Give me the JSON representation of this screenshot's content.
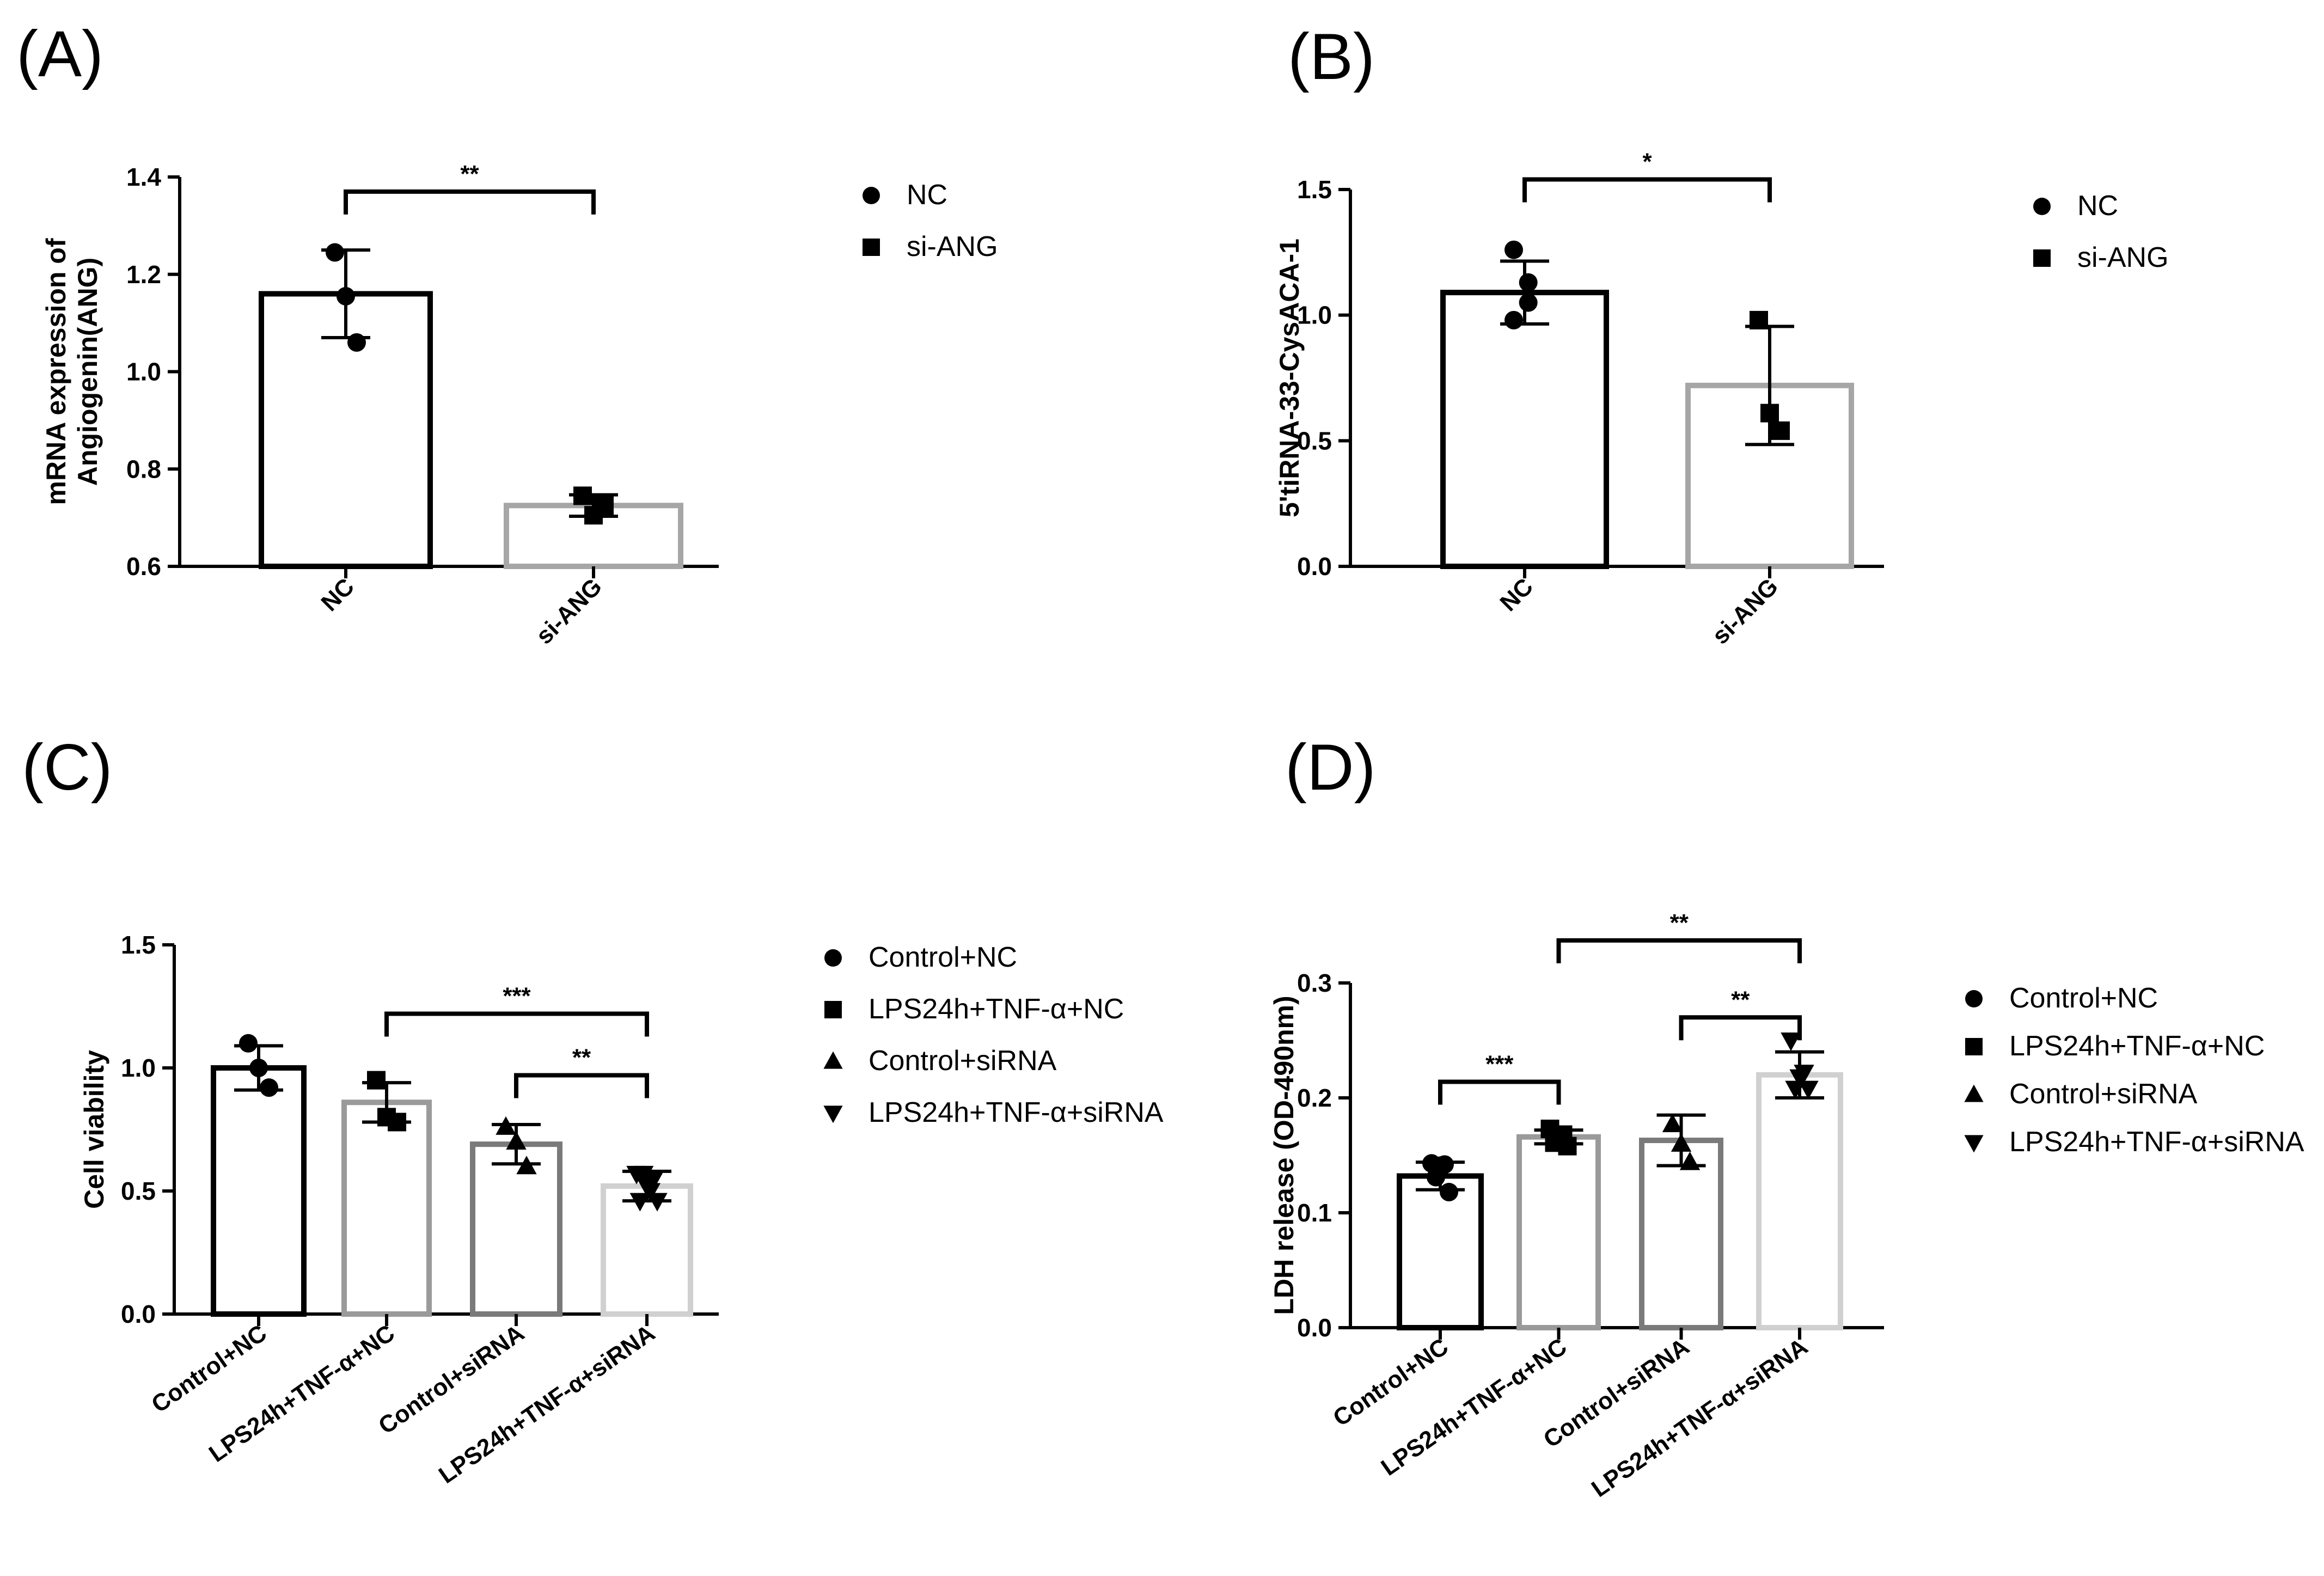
{
  "chart_data": [
    {
      "panel": "(A)",
      "type": "bar",
      "categories": [
        "NC",
        "si-ANG"
      ],
      "ylabel": "mRNA expression of\nAngiogenin(ANG)",
      "ylim": [
        0.6,
        1.4
      ],
      "yticks": [
        0.6,
        0.8,
        1.0,
        1.2,
        1.4
      ],
      "yticklabels": [
        "0.6",
        "0.8",
        "1.0",
        "1.2",
        "1.4"
      ],
      "bar_colors": [
        "#000000",
        "#a6a6a6"
      ],
      "series": [
        {
          "name": "NC",
          "marker": "circle",
          "mean": 1.16,
          "sd": 0.09,
          "points": [
            1.245,
            1.155,
            1.06
          ]
        },
        {
          "name": "si-ANG",
          "marker": "square",
          "mean": 0.725,
          "sd": 0.022,
          "points": [
            0.745,
            0.705,
            0.725
          ]
        }
      ],
      "legend": [
        "NC",
        "si-ANG"
      ],
      "significance": [
        {
          "from": 0,
          "to": 1,
          "y": 1.37,
          "label": "**"
        }
      ]
    },
    {
      "panel": "(B)",
      "type": "bar",
      "categories": [
        "NC",
        "si-ANG"
      ],
      "ylabel": "5'tiRNA-33-CysACA-1",
      "ylim": [
        0.0,
        1.5
      ],
      "yticks": [
        0.0,
        0.5,
        1.0,
        1.5
      ],
      "yticklabels": [
        "0.0",
        "0.5",
        "1.0",
        "1.5"
      ],
      "bar_colors": [
        "#000000",
        "#a6a6a6"
      ],
      "series": [
        {
          "name": "NC",
          "marker": "circle",
          "mean": 1.09,
          "sd": 0.125,
          "points": [
            1.26,
            1.13,
            1.05,
            0.98
          ]
        },
        {
          "name": "si-ANG",
          "marker": "square",
          "mean": 0.72,
          "sd": 0.235,
          "points": [
            0.98,
            0.61,
            0.54
          ]
        }
      ],
      "legend": [
        "NC",
        "si-ANG"
      ],
      "significance": [
        {
          "from": 0,
          "to": 1,
          "y": 1.54,
          "label": "*"
        }
      ]
    },
    {
      "panel": "(C)",
      "type": "bar",
      "categories": [
        "Control+NC",
        "LPS24h+TNF-α+NC",
        "Control+siRNA",
        "LPS24h+TNF-α+siRNA"
      ],
      "ylabel": "Cell viability",
      "ylim": [
        0.0,
        1.5
      ],
      "yticks": [
        0.0,
        0.5,
        1.0,
        1.5
      ],
      "yticklabels": [
        "0.0",
        "0.5",
        "1.0",
        "1.5"
      ],
      "bar_colors": [
        "#000000",
        "#9a9a9a",
        "#7a7a7a",
        "#d0d0d0"
      ],
      "series": [
        {
          "name": "Control+NC",
          "marker": "circle",
          "mean": 1.0,
          "sd": 0.09,
          "points": [
            1.1,
            1.0,
            0.92
          ]
        },
        {
          "name": "LPS24h+TNF-α+NC",
          "marker": "square",
          "mean": 0.86,
          "sd": 0.08,
          "points": [
            0.95,
            0.8,
            0.78
          ]
        },
        {
          "name": "Control+siRNA",
          "marker": "triangle-up",
          "mean": 0.69,
          "sd": 0.08,
          "points": [
            0.76,
            0.7,
            0.6
          ]
        },
        {
          "name": "LPS24h+TNF-α+siRNA",
          "marker": "triangle-down",
          "mean": 0.52,
          "sd": 0.06,
          "points": [
            0.57,
            0.55,
            0.57,
            0.52,
            0.5,
            0.46,
            0.46
          ]
        }
      ],
      "legend": [
        "Control+NC",
        "LPS24h+TNF-α+NC",
        "Control+siRNA",
        "LPS24h+TNF-α+siRNA"
      ],
      "significance": [
        {
          "from": 1,
          "to": 3,
          "y": 1.22,
          "label": "***"
        },
        {
          "from": 2,
          "to": 3,
          "y": 0.97,
          "label": "**"
        }
      ]
    },
    {
      "panel": "(D)",
      "type": "bar",
      "categories": [
        "Control+NC",
        "LPS24h+TNF-α+NC",
        "Control+siRNA",
        "LPS24h+TNF-α+siRNA"
      ],
      "ylabel": "LDH release (OD-490nm)",
      "ylim": [
        0.0,
        0.3
      ],
      "yticks": [
        0.0,
        0.1,
        0.2,
        0.3
      ],
      "yticklabels": [
        "0.0",
        "0.1",
        "0.2",
        "0.3"
      ],
      "bar_colors": [
        "#000000",
        "#9a9a9a",
        "#7a7a7a",
        "#d0d0d0"
      ],
      "series": [
        {
          "name": "Control+NC",
          "marker": "circle",
          "mean": 0.132,
          "sd": 0.012,
          "points": [
            0.143,
            0.142,
            0.141,
            0.131,
            0.118
          ]
        },
        {
          "name": "LPS24h+TNF-α+NC",
          "marker": "square",
          "mean": 0.166,
          "sd": 0.006,
          "points": [
            0.173,
            0.168,
            0.163,
            0.161,
            0.158
          ]
        },
        {
          "name": "Control+siRNA",
          "marker": "triangle-up",
          "mean": 0.163,
          "sd": 0.022,
          "points": [
            0.177,
            0.16,
            0.144
          ]
        },
        {
          "name": "LPS24h+TNF-α+siRNA",
          "marker": "triangle-down",
          "mean": 0.22,
          "sd": 0.02,
          "points": [
            0.25,
            0.222,
            0.218,
            0.208,
            0.208
          ]
        }
      ],
      "legend": [
        "Control+NC",
        "LPS24h+TNF-α+NC",
        "Control+siRNA",
        "LPS24h+TNF-α+siRNA"
      ],
      "significance": [
        {
          "from": 1,
          "to": 3,
          "y": 0.337,
          "label": "**"
        },
        {
          "from": 0,
          "to": 1,
          "y": 0.214,
          "label": "***"
        },
        {
          "from": 2,
          "to": 3,
          "y": 0.27,
          "label": "**"
        }
      ]
    }
  ]
}
